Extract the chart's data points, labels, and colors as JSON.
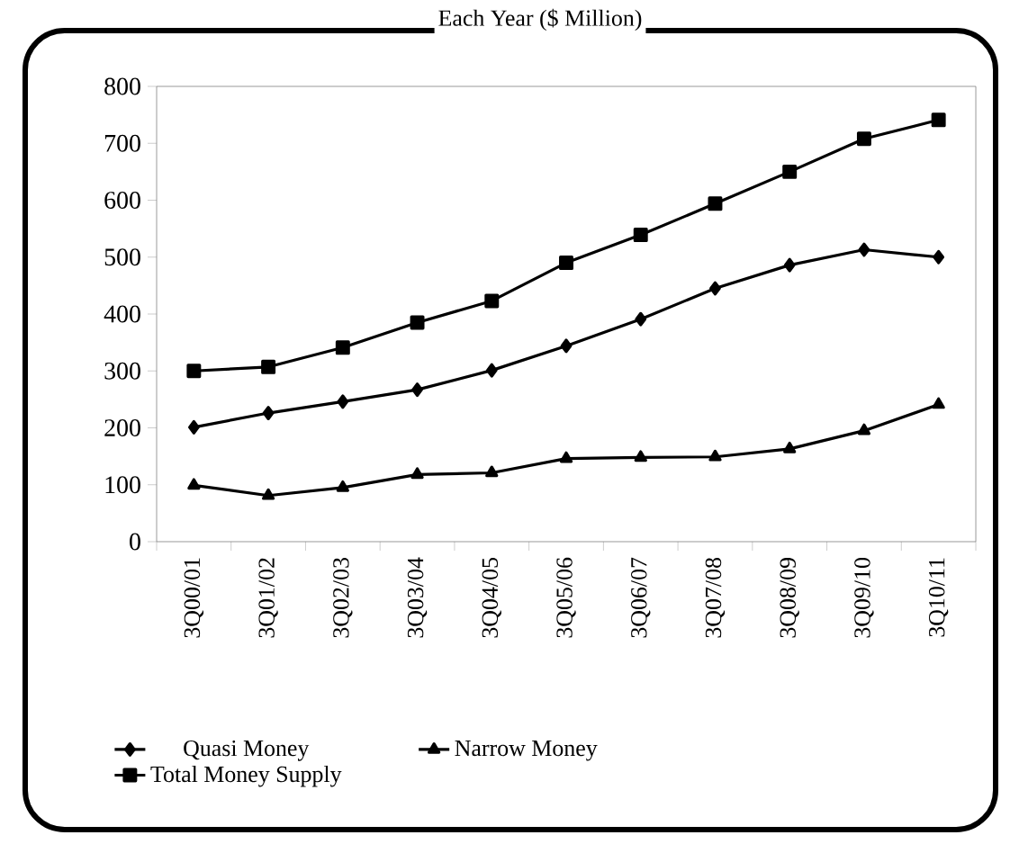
{
  "chart_data": {
    "type": "line",
    "title": "Each Year ($ Million)",
    "categories": [
      "3Q00/01",
      "3Q01/02",
      "3Q02/03",
      "3Q03/04",
      "3Q04/05",
      "3Q05/06",
      "3Q06/07",
      "3Q07/08",
      "3Q08/09",
      "3Q09/10",
      "3Q10/11"
    ],
    "series": [
      {
        "name": "Quasi Money",
        "color": "#000000",
        "marker": "diamond",
        "values": [
          201,
          226,
          246,
          267,
          301,
          344,
          391,
          445,
          486,
          513,
          500
        ]
      },
      {
        "name": "Narrow Money",
        "color": "#000000",
        "marker": "triangle",
        "values": [
          99,
          81,
          95,
          118,
          121,
          146,
          148,
          149,
          163,
          195,
          241
        ]
      },
      {
        "name": "Total Money Supply",
        "color": "#000000",
        "marker": "square",
        "values": [
          300,
          307,
          341,
          385,
          423,
          490,
          539,
          594,
          650,
          708,
          741
        ]
      }
    ],
    "ylim": [
      0,
      800
    ],
    "yticks": [
      0,
      100,
      200,
      300,
      400,
      500,
      600,
      700,
      800
    ],
    "grid": false,
    "legend": "bottom",
    "line_style": "solid"
  }
}
